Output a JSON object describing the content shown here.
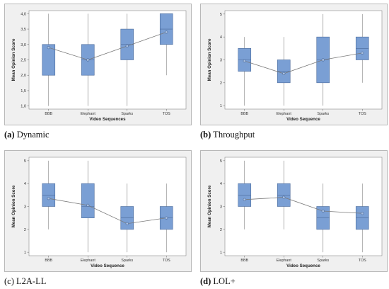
{
  "captions": [
    {
      "letter": "(a)",
      "text": " Dynamic"
    },
    {
      "letter": "(b)",
      "text": " Throughput"
    },
    {
      "letter": "(c)",
      "text": " L2A-LL"
    },
    {
      "letter": "(d)",
      "text": " LOL+"
    }
  ],
  "chart_data": [
    {
      "type": "box",
      "ylabel": "Mean Opinion Score",
      "xlabel": "Video Sequences",
      "categories": [
        "BBB",
        "Elephant",
        "Sparks",
        "TOS"
      ],
      "ylim": [
        0.9,
        4.1
      ],
      "yticks": [
        1.0,
        1.5,
        2.0,
        2.5,
        3.0,
        3.5,
        4.0
      ],
      "ytick_labels": [
        "1,0",
        "1,5",
        "2,0",
        "2,5",
        "3,0",
        "3,5",
        "4,0"
      ],
      "boxes": [
        {
          "min": 1.0,
          "q1": 2.0,
          "median": 3.0,
          "q3": 3.0,
          "max": 4.0,
          "mean": 2.9
        },
        {
          "min": 1.0,
          "q1": 2.0,
          "median": 2.5,
          "q3": 3.0,
          "max": 4.0,
          "mean": 2.5
        },
        {
          "min": 1.0,
          "q1": 2.5,
          "median": 3.0,
          "q3": 3.5,
          "max": 4.0,
          "mean": 2.95
        },
        {
          "min": 2.0,
          "q1": 3.0,
          "median": 3.5,
          "q3": 4.0,
          "max": 4.0,
          "mean": 3.4
        }
      ]
    },
    {
      "type": "box",
      "ylabel": "Mean Opinion Score",
      "xlabel": "Video Sequence",
      "categories": [
        "BBB",
        "Elephant",
        "Sparks",
        "TOS"
      ],
      "ylim": [
        0.85,
        5.15
      ],
      "yticks": [
        1,
        2,
        3,
        4,
        5
      ],
      "ytick_labels": [
        "1",
        "2",
        "3",
        "4",
        "5"
      ],
      "boxes": [
        {
          "min": 1.0,
          "q1": 2.5,
          "median": 3.0,
          "q3": 3.5,
          "max": 4.0,
          "mean": 2.95
        },
        {
          "min": 1.0,
          "q1": 2.0,
          "median": 2.5,
          "q3": 3.0,
          "max": 4.0,
          "mean": 2.4
        },
        {
          "min": 1.0,
          "q1": 2.0,
          "median": 3.0,
          "q3": 4.0,
          "max": 5.0,
          "mean": 3.0
        },
        {
          "min": 2.0,
          "q1": 3.0,
          "median": 3.5,
          "q3": 4.0,
          "max": 5.0,
          "mean": 3.3
        }
      ]
    },
    {
      "type": "box",
      "ylabel": "Mean Opinion Score",
      "xlabel": "Video Sequence",
      "categories": [
        "BBB",
        "Elephant",
        "Sparks",
        "TOS"
      ],
      "ylim": [
        0.85,
        5.15
      ],
      "yticks": [
        1,
        2,
        3,
        4,
        5
      ],
      "ytick_labels": [
        "1",
        "2",
        "3",
        "4",
        "5"
      ],
      "boxes": [
        {
          "min": 2.0,
          "q1": 3.0,
          "median": 3.5,
          "q3": 4.0,
          "max": 5.0,
          "mean": 3.35
        },
        {
          "min": 1.0,
          "q1": 2.5,
          "median": 3.0,
          "q3": 4.0,
          "max": 5.0,
          "mean": 3.05
        },
        {
          "min": 1.0,
          "q1": 2.0,
          "median": 2.5,
          "q3": 3.0,
          "max": 4.0,
          "mean": 2.25
        },
        {
          "min": 1.0,
          "q1": 2.0,
          "median": 2.5,
          "q3": 3.0,
          "max": 4.0,
          "mean": 2.5
        }
      ]
    },
    {
      "type": "box",
      "ylabel": "Mean Opinion Score",
      "xlabel": "Video Sequence",
      "categories": [
        "BBB",
        "Elephant",
        "Sparks",
        "TOS"
      ],
      "ylim": [
        0.85,
        5.15
      ],
      "yticks": [
        1,
        2,
        3,
        4,
        5
      ],
      "ytick_labels": [
        "1",
        "2",
        "3",
        "4",
        "5"
      ],
      "boxes": [
        {
          "min": 2.0,
          "q1": 3.0,
          "median": 3.5,
          "q3": 4.0,
          "max": 5.0,
          "mean": 3.3
        },
        {
          "min": 2.0,
          "q1": 3.0,
          "median": 3.5,
          "q3": 4.0,
          "max": 5.0,
          "mean": 3.4
        },
        {
          "min": 1.0,
          "q1": 2.0,
          "median": 2.5,
          "q3": 3.0,
          "max": 4.0,
          "mean": 2.8
        },
        {
          "min": 1.0,
          "q1": 2.0,
          "median": 2.5,
          "q3": 3.0,
          "max": 4.0,
          "mean": 2.7
        }
      ]
    }
  ],
  "colors": {
    "box_fill": "#7a9fd4",
    "box_stroke": "#4a6a9a",
    "line": "#7a7a7a",
    "panel_bg": "#f0f0f0",
    "plot_bg": "#ffffff"
  }
}
